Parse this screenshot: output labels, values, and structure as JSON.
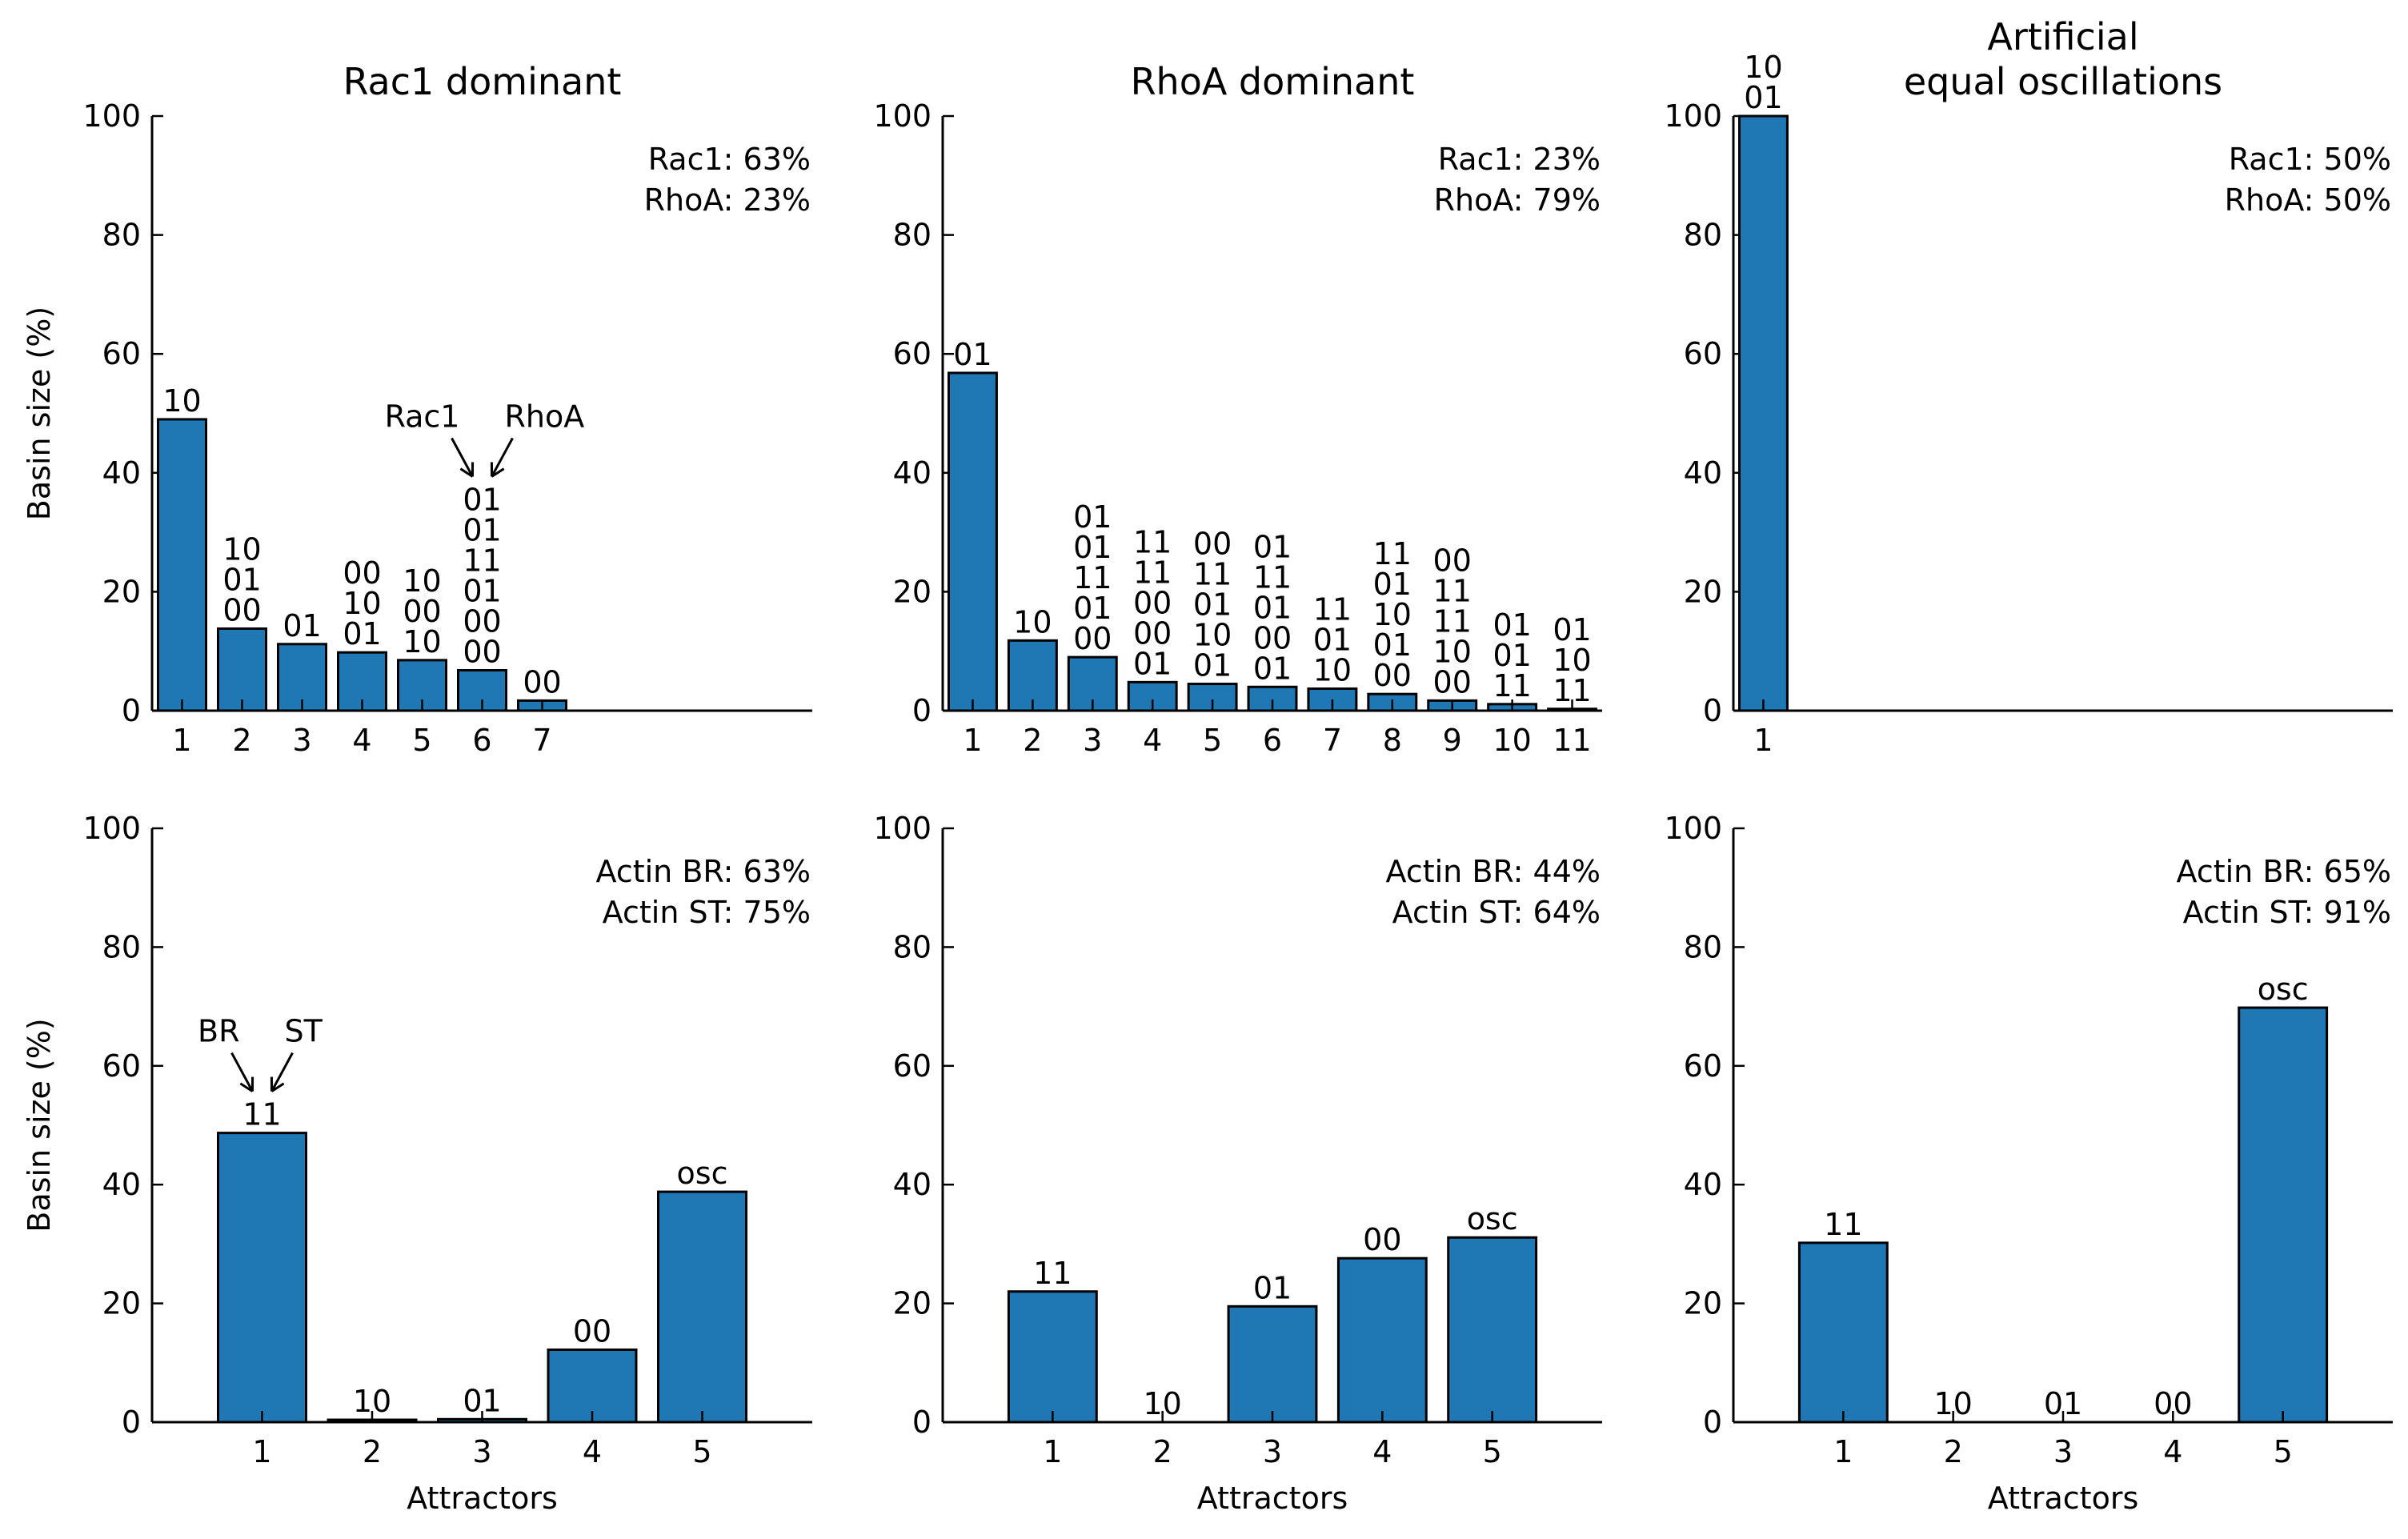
{
  "chart_data": [
    {
      "type": "bar",
      "title": "Rac1 dominant",
      "xlabel": "",
      "ylabel": "Basin size (%)",
      "ylim": [
        0,
        100
      ],
      "yticks": [
        "0",
        "20",
        "40",
        "60",
        "80",
        "100"
      ],
      "categories": [
        "1",
        "2",
        "3",
        "4",
        "5",
        "6",
        "7"
      ],
      "values": [
        49,
        13.8,
        11.2,
        9.8,
        8.5,
        6.8,
        1.7
      ],
      "bar_labels": [
        [
          "10"
        ],
        [
          "10",
          "01",
          "00"
        ],
        [
          "01"
        ],
        [
          "00",
          "10",
          "01"
        ],
        [
          "10",
          "00",
          "10"
        ],
        [
          "01",
          "01",
          "11",
          "01",
          "00",
          "00"
        ],
        [
          "00"
        ]
      ],
      "annotations": [
        "Rac1: 63%",
        "RhoA: 23%"
      ],
      "arrow_labels": {
        "bar": "6",
        "left": "Rac1",
        "right": "RhoA"
      },
      "xlim_slots": 11,
      "bar_color": "#1f77b4",
      "grid": false
    },
    {
      "type": "bar",
      "title": "RhoA dominant",
      "xlabel": "",
      "ylabel": "",
      "ylim": [
        0,
        100
      ],
      "yticks": [
        "0",
        "20",
        "40",
        "60",
        "80",
        "100"
      ],
      "categories": [
        "1",
        "2",
        "3",
        "4",
        "5",
        "6",
        "7",
        "8",
        "9",
        "10",
        "11"
      ],
      "values": [
        56.8,
        11.8,
        9,
        4.8,
        4.5,
        4,
        3.7,
        2.8,
        1.7,
        1.1,
        0.3
      ],
      "bar_labels": [
        [
          "01"
        ],
        [
          "10"
        ],
        [
          "01",
          "01",
          "11",
          "01",
          "00"
        ],
        [
          "11",
          "11",
          "00",
          "00",
          "01"
        ],
        [
          "00",
          "11",
          "01",
          "10",
          "01"
        ],
        [
          "01",
          "11",
          "01",
          "00",
          "01"
        ],
        [
          "11",
          "01",
          "10"
        ],
        [
          "11",
          "01",
          "10",
          "01",
          "00"
        ],
        [
          "00",
          "11",
          "11",
          "10",
          "00"
        ],
        [
          "01",
          "01",
          "11"
        ],
        [
          "01",
          "10",
          "11"
        ]
      ],
      "annotations": [
        "Rac1: 23%",
        "RhoA: 79%"
      ],
      "xlim_slots": 11,
      "bar_color": "#1f77b4",
      "grid": false
    },
    {
      "type": "bar",
      "title": "Artificial\nequal oscillations",
      "title_lines": [
        "Artificial",
        "equal oscillations"
      ],
      "xlabel": "",
      "ylabel": "",
      "ylim": [
        0,
        100
      ],
      "yticks": [
        "0",
        "20",
        "40",
        "60",
        "80",
        "100"
      ],
      "categories": [
        "1"
      ],
      "values": [
        100
      ],
      "bar_labels": [
        [
          "10",
          "01"
        ]
      ],
      "annotations": [
        "Rac1: 50%",
        "RhoA: 50%"
      ],
      "xlim_slots": 11,
      "bar_color": "#1f77b4",
      "grid": false
    },
    {
      "type": "bar",
      "title": "",
      "xlabel": "Attractors",
      "ylabel": "Basin size (%)",
      "ylim": [
        0,
        100
      ],
      "yticks": [
        "0",
        "20",
        "40",
        "60",
        "80",
        "100"
      ],
      "categories": [
        "1",
        "2",
        "3",
        "4",
        "5"
      ],
      "values": [
        48.7,
        0.4,
        0.5,
        12.2,
        38.8
      ],
      "bar_labels": [
        [
          "11"
        ],
        [
          "10"
        ],
        [
          "01"
        ],
        [
          "00"
        ],
        [
          "osc"
        ]
      ],
      "annotations": [
        "Actin BR: 63%",
        "Actin ST: 75%"
      ],
      "arrow_labels": {
        "bar": "1",
        "left": "BR",
        "right": "ST"
      },
      "xlim_slots": 6,
      "bar_color": "#1f77b4",
      "grid": false
    },
    {
      "type": "bar",
      "title": "",
      "xlabel": "Attractors",
      "ylabel": "",
      "ylim": [
        0,
        100
      ],
      "yticks": [
        "0",
        "20",
        "40",
        "60",
        "80",
        "100"
      ],
      "categories": [
        "1",
        "2",
        "3",
        "4",
        "5"
      ],
      "values": [
        22,
        0,
        19.5,
        27.6,
        31.1
      ],
      "bar_labels": [
        [
          "11"
        ],
        [
          "10"
        ],
        [
          "01"
        ],
        [
          "00"
        ],
        [
          "osc"
        ]
      ],
      "annotations": [
        "Actin BR: 44%",
        "Actin ST: 64%"
      ],
      "xlim_slots": 6,
      "bar_color": "#1f77b4",
      "grid": false
    },
    {
      "type": "bar",
      "title": "",
      "xlabel": "Attractors",
      "ylabel": "",
      "ylim": [
        0,
        100
      ],
      "yticks": [
        "0",
        "20",
        "40",
        "60",
        "80",
        "100"
      ],
      "categories": [
        "1",
        "2",
        "3",
        "4",
        "5"
      ],
      "values": [
        30.2,
        0,
        0,
        0,
        69.8
      ],
      "bar_labels": [
        [
          "11"
        ],
        [
          "10"
        ],
        [
          "01"
        ],
        [
          "00"
        ],
        [
          "osc"
        ]
      ],
      "annotations": [
        "Actin BR: 65%",
        "Actin ST: 91%"
      ],
      "xlim_slots": 6,
      "bar_color": "#1f77b4",
      "grid": false
    }
  ]
}
